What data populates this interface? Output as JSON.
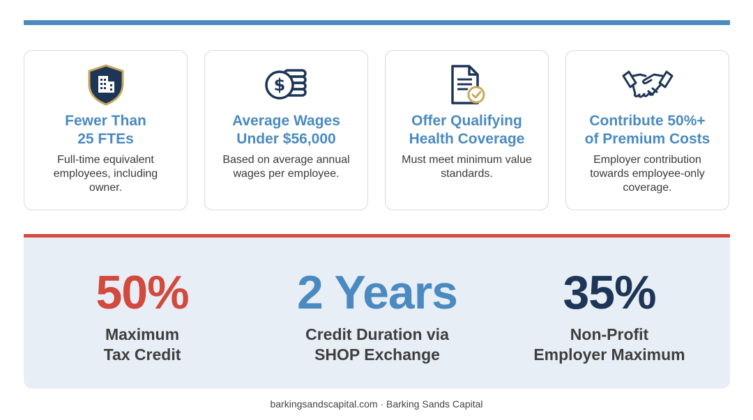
{
  "colors": {
    "accent_blue": "#4a8ac0",
    "accent_red": "#d2493e",
    "navy": "#1d3557",
    "gold": "#c9a75c",
    "panel_bg": "#e8eef5"
  },
  "criteria": [
    {
      "icon": "shield-building-icon",
      "title": "Fewer Than\n25 FTEs",
      "description": "Full-time equivalent employees, including owner."
    },
    {
      "icon": "coins-dollar-icon",
      "title": "Average Wages\nUnder $56,000",
      "description": "Based on average annual wages per employee."
    },
    {
      "icon": "document-check-icon",
      "title": "Offer Qualifying\nHealth Coverage",
      "description": "Must meet minimum value standards."
    },
    {
      "icon": "handshake-icon",
      "title": "Contribute 50%+\nof Premium Costs",
      "description": "Employer contribution towards employee-only coverage."
    }
  ],
  "stats": [
    {
      "value": "50%",
      "label": "Maximum\nTax Credit",
      "color": "#d2493e"
    },
    {
      "value": "2 Years",
      "label": "Credit Duration via\nSHOP Exchange",
      "color": "#4a8ac0"
    },
    {
      "value": "35%",
      "label": "Non-Profit\nEmployer Maximum",
      "color": "#1d3557"
    }
  ],
  "footer": "barkingsandscapital.com · Barking Sands Capital"
}
